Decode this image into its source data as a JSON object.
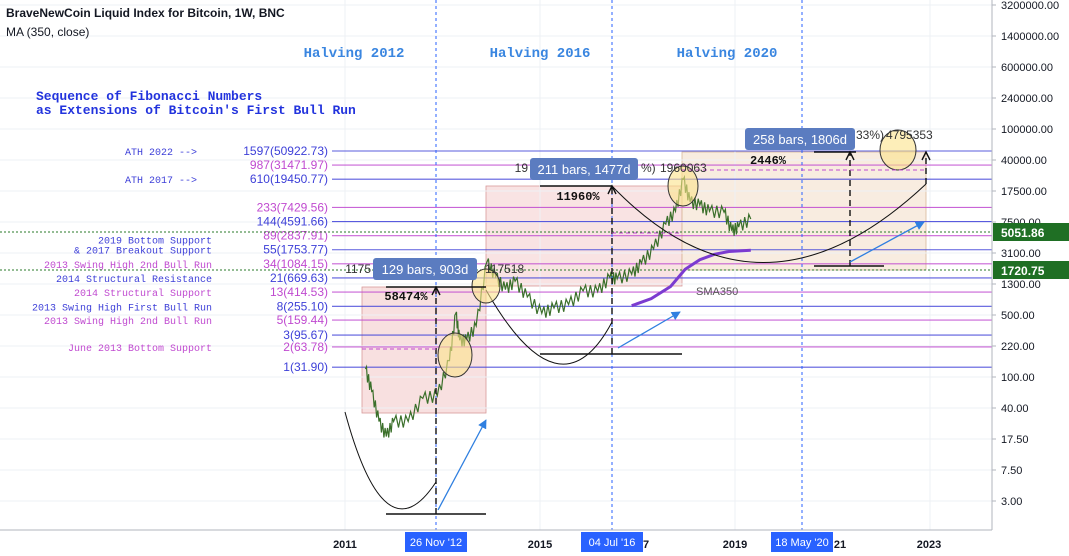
{
  "header": {
    "title": "BraveNewCoin Liquid Index for Bitcoin, 1W, BNC",
    "indicator": "MA (350, close)"
  },
  "colors": {
    "fib_blue": "#3d3fd8",
    "fib_pink": "#c04ad0",
    "halving_line": "#2962ff",
    "ma_purple": "#7b3bd0",
    "price_badge_green": "#1f6f24",
    "measure_box": "#5b7cc0"
  },
  "chart_data": {
    "type": "line",
    "scale": "log",
    "title": "BraveNewCoin Liquid Index for Bitcoin, 1W, BNC",
    "x_ticks": [
      "2011",
      "2015",
      "2019",
      "2023"
    ],
    "x_highlighted_ticks": [
      "26 Nov '12",
      "04 Jul '16",
      "18 May '20"
    ],
    "x_partial_ticks": [
      "7",
      "21"
    ],
    "y_ticks": [
      "3200000.00",
      "1400000.00",
      "600000.00",
      "240000.00",
      "100000.00",
      "40000.00",
      "17500.00",
      "7500.00",
      "3100.00",
      "1300.00",
      "500.00",
      "220.00",
      "100.00",
      "40.00",
      "17.50",
      "7.50",
      "3.00"
    ],
    "current_price_labels": [
      "5051.86",
      "1720.75"
    ],
    "halvings": [
      {
        "label": "Halving 2012",
        "date": "26 Nov '12"
      },
      {
        "label": "Halving 2016",
        "date": "04 Jul '16"
      },
      {
        "label": "Halving 2020",
        "date": "18 May '20"
      }
    ],
    "headline": [
      "Sequence of Fibonacci Numbers",
      "as Extensions of Bitcoin's First Bull Run"
    ],
    "fib_levels": [
      {
        "label": "1597(50922.73)",
        "value": 50922.73,
        "note": "ATH 2022 -->",
        "color": "blue"
      },
      {
        "label": "987(31471.97)",
        "value": 31471.97,
        "note": "",
        "color": "pink"
      },
      {
        "label": "610(19450.77)",
        "value": 19450.77,
        "note": "ATH 2017 -->",
        "color": "blue"
      },
      {
        "label": "233(7429.56)",
        "value": 7429.56,
        "note": "",
        "color": "pink"
      },
      {
        "label": "144(4591.66)",
        "value": 4591.66,
        "note": "",
        "color": "blue"
      },
      {
        "label": "89(2837.91)",
        "value": 2837.91,
        "note": "",
        "color": "pink"
      },
      {
        "label": "55(1753.77)",
        "value": 1753.77,
        "note": "2019 Bottom Support\n& 2017 Breakout Support",
        "color": "blue"
      },
      {
        "label": "34(1084.15)",
        "value": 1084.15,
        "note": "2013 Swing High 2nd Bull Run",
        "color": "pink"
      },
      {
        "label": "21(669.63)",
        "value": 669.63,
        "note": "2014 Structural Resistance",
        "color": "blue"
      },
      {
        "label": "13(414.53)",
        "value": 414.53,
        "note": "2014 Structural Support",
        "color": "pink"
      },
      {
        "label": "8(255.10)",
        "value": 255.1,
        "note": "2013 Swing High First Bull Run",
        "color": "blue"
      },
      {
        "label": "5(159.44)",
        "value": 159.44,
        "note": "2013 Swing High 2nd Bull Run",
        "color": "pink"
      },
      {
        "label": "3(95.67)",
        "value": 95.67,
        "note": "",
        "color": "blue"
      },
      {
        "label": "2(63.78)",
        "value": 63.78,
        "note": "June 2013 Bottom Support",
        "color": "pink"
      },
      {
        "label": "1(31.90)",
        "value": 31.9,
        "note": "",
        "color": "blue"
      }
    ],
    "measurements": [
      {
        "box": "129 bars, 903d",
        "pct": "58474%",
        "price_left": "1175",
        "price_right": "117518"
      },
      {
        "box": "211 bars, 1477d",
        "pct": "11960%",
        "price_left": "19",
        "price_mid": "%)",
        "price_right": "1960063"
      },
      {
        "box": "258 bars, 1806d",
        "pct": "2446%",
        "price_left": "33%)",
        "price_right": "4795353"
      }
    ],
    "ma_label": "SMA350",
    "price_series": [
      [
        2011.42,
        30
      ],
      [
        2011.55,
        14
      ],
      [
        2011.7,
        5
      ],
      [
        2011.85,
        3
      ],
      [
        2012.0,
        5
      ],
      [
        2012.3,
        5
      ],
      [
        2012.6,
        11
      ],
      [
        2012.9,
        12
      ],
      [
        2013.15,
        40
      ],
      [
        2013.28,
        200
      ],
      [
        2013.36,
        80
      ],
      [
        2013.5,
        80
      ],
      [
        2013.7,
        130
      ],
      [
        2013.92,
        1150
      ],
      [
        2014.1,
        700
      ],
      [
        2014.3,
        450
      ],
      [
        2014.5,
        600
      ],
      [
        2014.75,
        350
      ],
      [
        2015.05,
        200
      ],
      [
        2015.3,
        240
      ],
      [
        2015.6,
        270
      ],
      [
        2015.9,
        430
      ],
      [
        2016.2,
        420
      ],
      [
        2016.45,
        680
      ],
      [
        2016.6,
        650
      ],
      [
        2016.9,
        760
      ],
      [
        2017.1,
        1100
      ],
      [
        2017.35,
        1800
      ],
      [
        2017.6,
        4200
      ],
      [
        2017.8,
        6500
      ],
      [
        2017.96,
        19400
      ],
      [
        2018.1,
        9000
      ],
      [
        2018.3,
        8000
      ],
      [
        2018.5,
        6500
      ],
      [
        2018.8,
        6300
      ],
      [
        2018.96,
        3300
      ],
      [
        2019.1,
        3800
      ],
      [
        2019.35,
        5000
      ]
    ],
    "ma_series": [
      [
        2016.9,
        260
      ],
      [
        2017.3,
        330
      ],
      [
        2017.7,
        500
      ],
      [
        2018.0,
        900
      ],
      [
        2018.3,
        1250
      ],
      [
        2018.6,
        1500
      ],
      [
        2018.9,
        1650
      ],
      [
        2019.35,
        1720
      ]
    ]
  }
}
